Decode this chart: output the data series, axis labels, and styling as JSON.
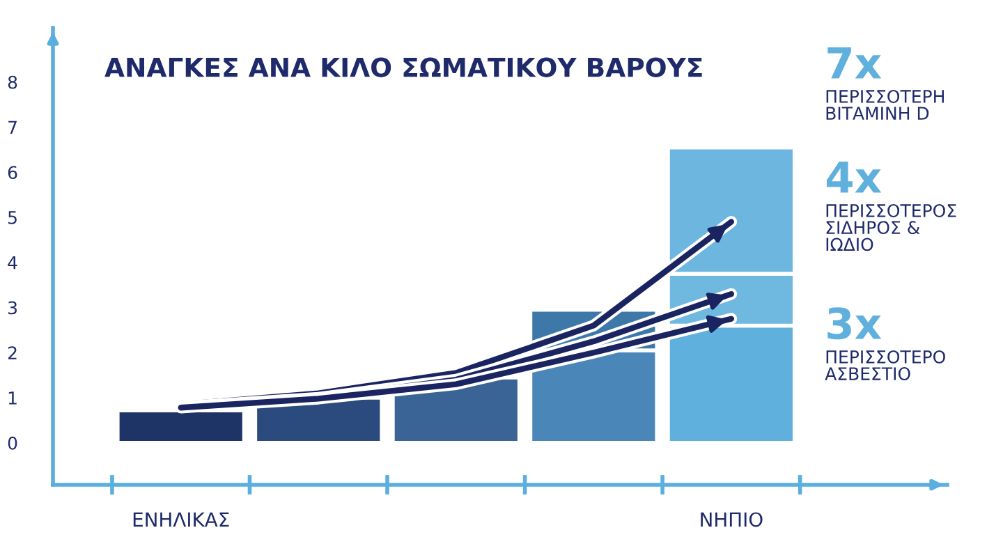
{
  "chart_data": {
    "type": "bar",
    "title": "ΑΝΑΓΚΕΣ ΑΝΑ ΚΙΛΟ ΣΩΜΑΤΙΚΟΥ ΒΑΡΟΥΣ",
    "categories": [
      "ΕΝΗΛΙΚΑΣ",
      null,
      null,
      null,
      "ΝΗΠΙΟ"
    ],
    "stacked": true,
    "series": [
      {
        "colors": [
          "#1f3466",
          "#2b4a7d",
          "#3a6496",
          "#4a86b8",
          "#5fb0dd"
        ],
        "values": [
          0.72,
          1.0,
          1.45,
          2.05,
          2.6
        ]
      },
      {
        "colors": [
          "#3d78a8",
          "#3d78a8",
          "#3d78a8",
          "#3d78a8",
          "#6fb8e0"
        ],
        "values": [
          null,
          null,
          null,
          0.9,
          1.15
        ]
      },
      {
        "colors": [
          "#6db6df",
          "#6db6df",
          "#6db6df",
          "#6db6df",
          "#6db6df"
        ],
        "values": [
          null,
          null,
          null,
          null,
          2.8
        ]
      },
      {
        "type": "line",
        "name": "ΠΕΡΙΣΣΟΤΕΡΗ\nΒΙΤΑΜΙΝΗ D",
        "color": "#1a2460",
        "values": [
          0.85,
          1.1,
          1.55,
          2.6,
          4.9
        ]
      },
      {
        "type": "line",
        "name": "ΠΕΡΙΣΣΟΤΕΡΟΣ\nΣΙΔΗΡΟΣ &\nΙΩΔΙΟ",
        "color": "#1a2460",
        "values": [
          0.8,
          1.0,
          1.4,
          2.25,
          3.3
        ]
      },
      {
        "type": "line",
        "name": "ΠΕΡΙΣΣΟΤΕΡΟ\nΑΣΒΕΣΤΙΟ",
        "color": "#1a2460",
        "values": [
          0.78,
          0.98,
          1.3,
          2.0,
          2.75
        ]
      }
    ],
    "annotations": [
      "7x",
      "4x",
      "3x"
    ],
    "ylim": [
      -0.93,
      9.2
    ],
    "yticks": [
      0,
      1,
      2,
      3,
      4,
      5,
      6,
      7,
      8
    ],
    "grid": false
  }
}
